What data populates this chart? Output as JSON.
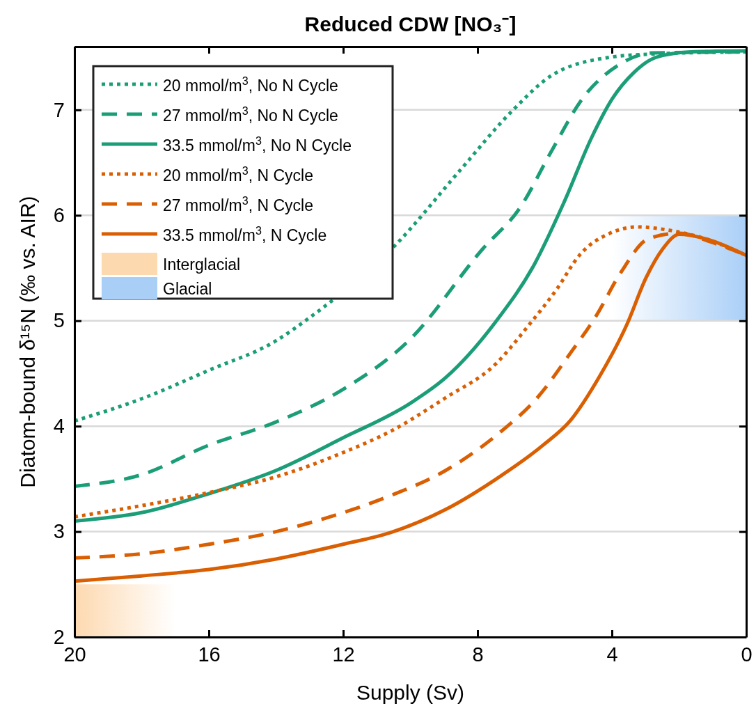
{
  "chart_data": {
    "type": "line",
    "title": "Reduced CDW [NO₃⁻]",
    "xlabel": "Supply (Sv)",
    "ylabel": "Diatom-bound δ¹⁵N (‰ vs. AIR)",
    "xlim": [
      20,
      0
    ],
    "xticks": [
      20,
      16,
      12,
      8,
      4,
      0
    ],
    "ylim": [
      2,
      7.6
    ],
    "yticks": [
      2,
      3,
      4,
      5,
      6,
      7
    ],
    "grid": "y",
    "legend": "top left",
    "series": [
      {
        "name": "20 mmol/m$^{3}$, No N Cycle",
        "color": "#1b9e77",
        "line_style": "dotted",
        "x": [
          20,
          18,
          16,
          14,
          13,
          10.47,
          8.54,
          6.94,
          5.78,
          4.04,
          2.8,
          0
        ],
        "values": [
          4.05,
          4.26,
          4.53,
          4.81,
          5.03,
          5.71,
          6.42,
          7.0,
          7.33,
          7.5,
          7.53,
          7.55
        ]
      },
      {
        "name": "27 mmol/m$^{3}$, No N Cycle",
        "color": "#1b9e77",
        "line_style": "dashed",
        "x": [
          20,
          18,
          16,
          14,
          12,
          9.99,
          7.85,
          6.74,
          5.78,
          4.87,
          3.83,
          2.8,
          0
        ],
        "values": [
          3.43,
          3.54,
          3.82,
          4.04,
          4.35,
          4.83,
          5.68,
          6.07,
          6.62,
          7.11,
          7.42,
          7.54,
          7.55
        ]
      },
      {
        "name": "33.5 mmol/m$^{3}$, No N Cycle",
        "color": "#1b9e77",
        "line_style": "solid",
        "x": [
          20,
          18,
          16,
          14,
          12,
          9.99,
          8.95,
          7.46,
          6.3,
          5.43,
          4.6,
          3.98,
          3.36,
          2.67,
          1.64,
          0
        ],
        "values": [
          3.1,
          3.18,
          3.36,
          3.58,
          3.89,
          4.22,
          4.46,
          4.99,
          5.54,
          6.12,
          6.74,
          7.11,
          7.35,
          7.5,
          7.55,
          7.56
        ]
      },
      {
        "name": "20 mmol/m$^{3}$, N Cycle",
        "color": "#d95f02",
        "line_style": "dotted",
        "x": [
          20,
          16,
          14,
          12,
          10.6,
          8.95,
          7.46,
          6.47,
          5.64,
          4.97,
          4.06,
          3.23,
          2.32,
          1.24,
          0
        ],
        "values": [
          3.14,
          3.37,
          3.52,
          3.75,
          3.95,
          4.27,
          4.59,
          4.96,
          5.3,
          5.62,
          5.83,
          5.89,
          5.86,
          5.78,
          5.62
        ]
      },
      {
        "name": "27 mmol/m$^{3}$, N Cycle",
        "color": "#d95f02",
        "line_style": "dashed",
        "x": [
          20,
          18,
          16,
          14,
          12,
          10.6,
          8.95,
          7.3,
          6.22,
          5.22,
          4.48,
          3.73,
          2.9,
          1.99,
          1.08,
          0
        ],
        "values": [
          2.75,
          2.79,
          2.88,
          3.0,
          3.18,
          3.34,
          3.58,
          3.95,
          4.27,
          4.7,
          5.04,
          5.46,
          5.78,
          5.83,
          5.75,
          5.62
        ]
      },
      {
        "name": "33.5 mmol/m$^{3}$, N Cycle",
        "color": "#d95f02",
        "line_style": "solid",
        "x": [
          20,
          18,
          16,
          14,
          12,
          10.6,
          8.95,
          7.3,
          6.05,
          5.22,
          4.39,
          3.56,
          2.98,
          2.49,
          1.99,
          1.24,
          0
        ],
        "values": [
          2.53,
          2.58,
          2.64,
          2.74,
          2.88,
          2.99,
          3.21,
          3.53,
          3.82,
          4.06,
          4.46,
          4.96,
          5.41,
          5.68,
          5.82,
          5.78,
          5.62
        ]
      }
    ],
    "bands": [
      {
        "axis": "y",
        "from": 2,
        "to": 2.5,
        "label": "Interglacial",
        "color": "#fdd9b0"
      },
      {
        "axis": "y",
        "from": 5,
        "to": 6,
        "label": "Glacial",
        "color": "#aacff7"
      }
    ]
  }
}
